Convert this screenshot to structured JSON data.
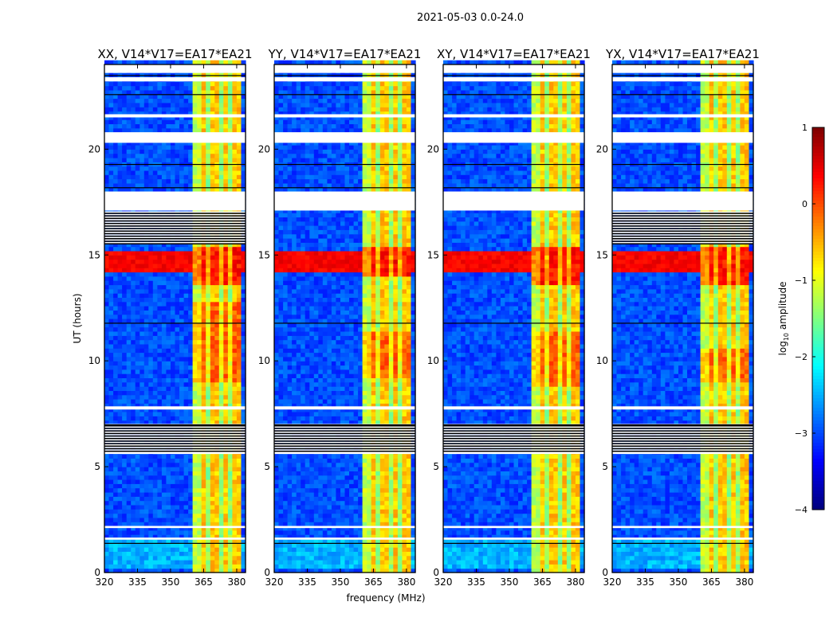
{
  "chart_data": {
    "type": "heatmap",
    "title": "2021-05-03 0.0-24.0",
    "xlabel": "frequency (MHz)",
    "ylabel": "UT (hours)",
    "xlim": [
      320,
      384
    ],
    "ylim": [
      0,
      24
    ],
    "xticks": [
      "320",
      "335",
      "350",
      "365",
      "380"
    ],
    "xtick_values": [
      320,
      335,
      350,
      365,
      380
    ],
    "yticks": [
      "0",
      "5",
      "10",
      "15",
      "20"
    ],
    "ytick_values": [
      0,
      5,
      10,
      15,
      20
    ],
    "panels": [
      {
        "title": "XX, V14*V17=EA17*EA21",
        "black_flag_band": [
          15.5,
          17.0
        ],
        "strong_band_hours": [
          13.4,
          15.3
        ],
        "bright_band_hours": [
          9.0,
          12.6
        ]
      },
      {
        "title": "YY, V14*V17=EA17*EA21",
        "black_flag_band": null,
        "strong_band_hours": [
          13.8,
          15.2
        ],
        "bright_band_hours": [
          9.2,
          11.2
        ]
      },
      {
        "title": "XY, V14*V17=EA17*EA21",
        "black_flag_band": null,
        "strong_band_hours": [
          13.4,
          15.2
        ],
        "bright_band_hours": [
          8.8,
          11.2
        ]
      },
      {
        "title": "YX, V14*V17=EA17*EA21",
        "black_flag_band": [
          15.5,
          17.0
        ],
        "strong_band_hours": [
          13.4,
          15.2
        ],
        "bright_band_hours": [
          9.0,
          10.5
        ]
      }
    ],
    "background_level": -3.0,
    "rfi_band_mhz": [
      360,
      381
    ],
    "rfi_level": -0.6,
    "strong_rfi_hours": [
      14.0,
      15.0
    ],
    "strong_rfi_level": 0.4,
    "flagged_white_hours": [
      [
        17.1,
        18.0
      ],
      [
        23.2,
        23.4
      ],
      [
        21.5,
        21.65
      ],
      [
        20.3,
        20.8
      ],
      [
        7.7,
        7.85
      ],
      [
        5.6,
        5.7
      ],
      [
        2.1,
        2.2
      ],
      [
        1.55,
        1.65
      ]
    ],
    "black_flag_band_common": [
      5.7,
      7.0
    ],
    "colorbar": {
      "label": "log10 amplitude",
      "label_main": "log",
      "label_sub": "10",
      "label_rest": " amplitude",
      "ticks": [
        "1",
        "0",
        "−1",
        "−2",
        "−3",
        "−4"
      ],
      "tick_values": [
        1,
        0,
        -1,
        -2,
        -3,
        -4
      ],
      "range": [
        -4,
        1
      ],
      "colormap": "jet"
    }
  }
}
